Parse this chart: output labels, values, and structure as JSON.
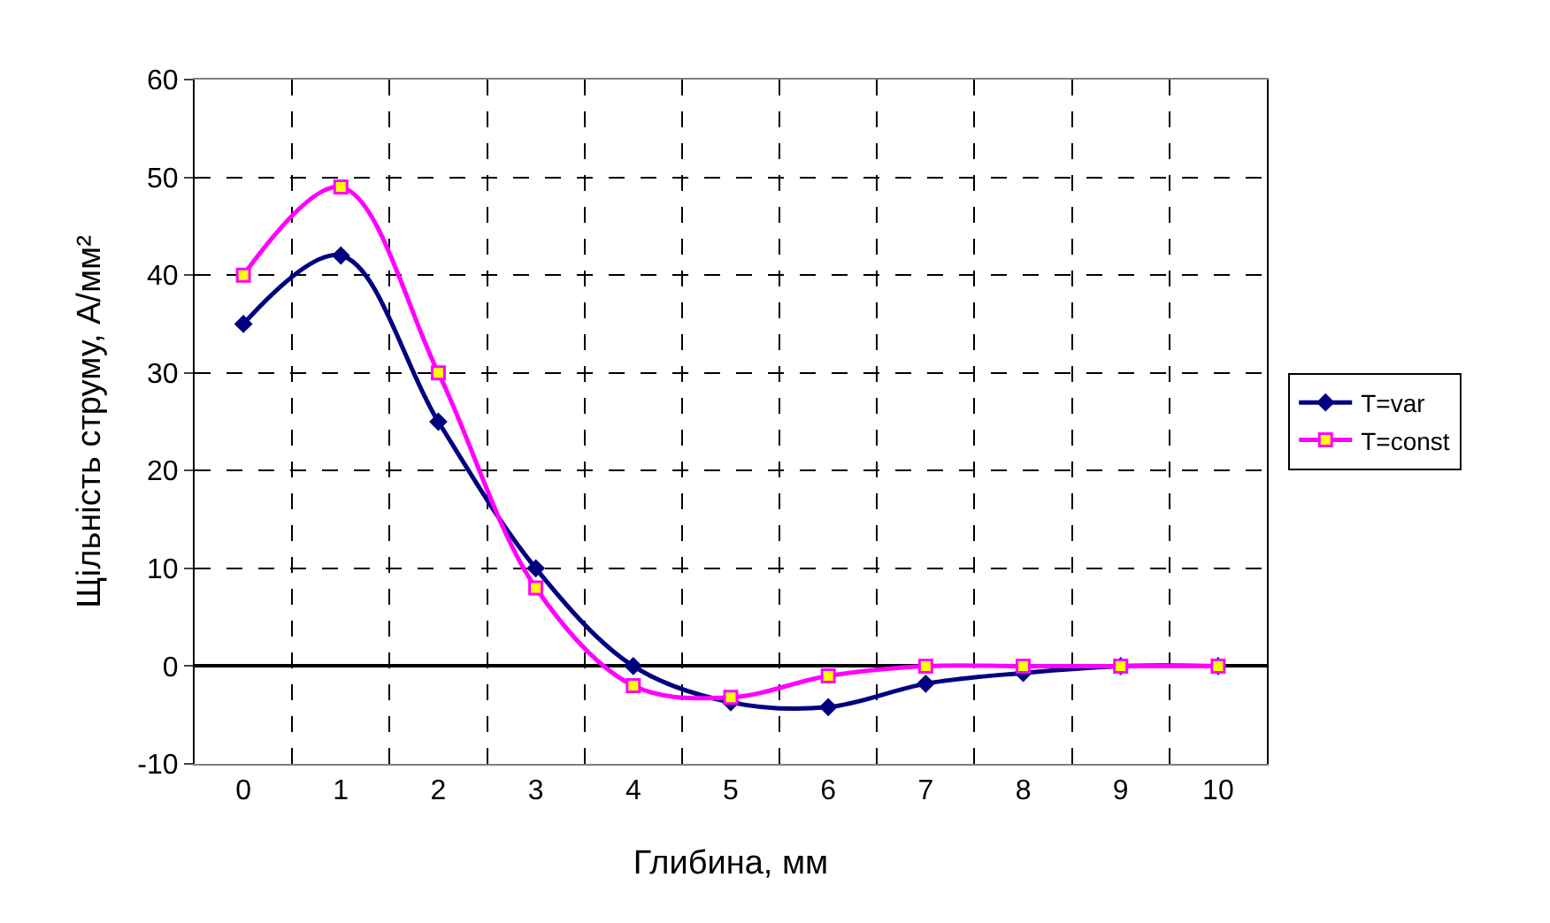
{
  "chart_data": {
    "type": "line",
    "xlabel": "Глибина, мм",
    "ylabel": "Щільність струму, А/мм²",
    "categories": [
      "0",
      "1",
      "2",
      "3",
      "4",
      "5",
      "6",
      "7",
      "8",
      "9",
      "10"
    ],
    "series": [
      {
        "name": "T=var",
        "color": "#000080",
        "marker": "diamond",
        "values": [
          35,
          42,
          25,
          10,
          0,
          -3.7,
          -4.2,
          -1.8,
          -0.7,
          0,
          0
        ]
      },
      {
        "name": "T=const",
        "color": "#ff00ff",
        "marker": "square",
        "values": [
          40,
          49,
          30,
          8,
          -2,
          -3.2,
          -1,
          0,
          0,
          0,
          0
        ]
      }
    ],
    "ylim": [
      -10,
      60
    ],
    "yticks": [
      -10,
      0,
      10,
      20,
      30,
      40,
      50,
      60
    ],
    "grid": true,
    "legend": "right",
    "line_style": "solid"
  }
}
